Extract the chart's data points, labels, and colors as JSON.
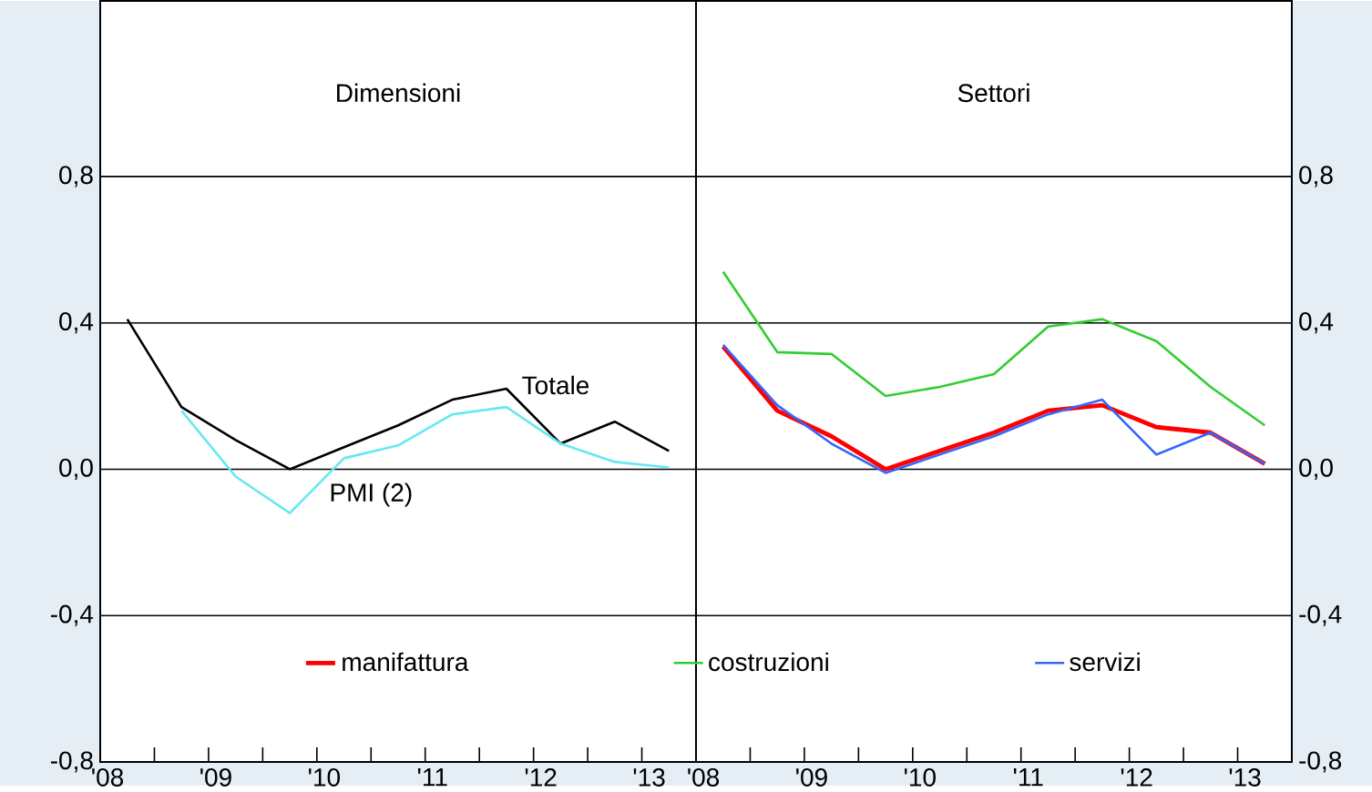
{
  "chart_data": [
    {
      "type": "line",
      "title": "Dimensioni",
      "x": [
        2008.25,
        2008.75,
        2009.25,
        2009.75,
        2010.25,
        2010.75,
        2011.25,
        2011.75,
        2012.25,
        2012.75,
        2013.25
      ],
      "series": [
        {
          "name": "Totale",
          "color": "#000000",
          "values": [
            0.41,
            0.17,
            0.08,
            0.0,
            0.06,
            0.12,
            0.19,
            0.22,
            0.07,
            0.13,
            0.05
          ]
        },
        {
          "name": "PMI (2)",
          "color": "#66e8f5",
          "values": [
            null,
            0.16,
            -0.02,
            -0.12,
            0.03,
            0.065,
            0.15,
            0.17,
            0.07,
            0.02,
            0.005
          ]
        }
      ],
      "xlim": [
        2008.0,
        2013.5
      ],
      "ylim": [
        -0.8,
        1.28
      ],
      "xticks": [
        {
          "value": 2008.0,
          "label": "'08"
        },
        {
          "value": 2008.5,
          "label": null
        },
        {
          "value": 2009.0,
          "label": "'09"
        },
        {
          "value": 2009.5,
          "label": null
        },
        {
          "value": 2010.0,
          "label": "'10"
        },
        {
          "value": 2010.5,
          "label": null
        },
        {
          "value": 2011.0,
          "label": "'11"
        },
        {
          "value": 2011.5,
          "label": null
        },
        {
          "value": 2012.0,
          "label": "'12"
        },
        {
          "value": 2012.5,
          "label": null
        },
        {
          "value": 2013.0,
          "label": "'13"
        }
      ],
      "yticks": [
        {
          "value": -0.8,
          "label": "-0,8"
        },
        {
          "value": -0.4,
          "label": "-0,4"
        },
        {
          "value": 0.0,
          "label": "0,0"
        },
        {
          "value": 0.4,
          "label": "0,4"
        },
        {
          "value": 0.8,
          "label": "0,8"
        }
      ],
      "grid": "y",
      "legend": false
    },
    {
      "type": "line",
      "title": "Settori",
      "x": [
        2008.25,
        2008.75,
        2009.25,
        2009.75,
        2010.25,
        2010.75,
        2011.25,
        2011.75,
        2012.25,
        2012.75,
        2013.25
      ],
      "series": [
        {
          "name": "manifattura",
          "color": "#ff0000",
          "values": [
            0.335,
            0.16,
            0.09,
            0.0,
            0.05,
            0.1,
            0.16,
            0.175,
            0.115,
            0.1,
            0.015
          ]
        },
        {
          "name": "costruzioni",
          "color": "#33cc33",
          "values": [
            0.54,
            0.32,
            0.315,
            0.2,
            0.225,
            0.26,
            0.39,
            0.41,
            0.35,
            0.225,
            0.12
          ]
        },
        {
          "name": "servizi",
          "color": "#3366ff",
          "values": [
            0.34,
            0.175,
            0.07,
            -0.01,
            0.04,
            0.09,
            0.15,
            0.19,
            0.04,
            0.1,
            0.015
          ]
        }
      ],
      "xlim": [
        2008.0,
        2013.5
      ],
      "ylim": [
        -0.8,
        1.28
      ],
      "xticks": [
        {
          "value": 2008.0,
          "label": "'08"
        },
        {
          "value": 2008.5,
          "label": null
        },
        {
          "value": 2009.0,
          "label": "'09"
        },
        {
          "value": 2009.5,
          "label": null
        },
        {
          "value": 2010.0,
          "label": "'10"
        },
        {
          "value": 2010.5,
          "label": null
        },
        {
          "value": 2011.0,
          "label": "'11"
        },
        {
          "value": 2011.5,
          "label": null
        },
        {
          "value": 2012.0,
          "label": "'12"
        },
        {
          "value": 2012.5,
          "label": null
        },
        {
          "value": 2013.0,
          "label": "'13"
        }
      ],
      "yticks": [
        {
          "value": -0.8,
          "label": "-0,8"
        },
        {
          "value": -0.4,
          "label": "-0,4"
        },
        {
          "value": 0.0,
          "label": "0,0"
        },
        {
          "value": 0.4,
          "label": "0,4"
        },
        {
          "value": 0.8,
          "label": "0,8"
        }
      ],
      "grid": "y",
      "legend": "bottom"
    }
  ]
}
